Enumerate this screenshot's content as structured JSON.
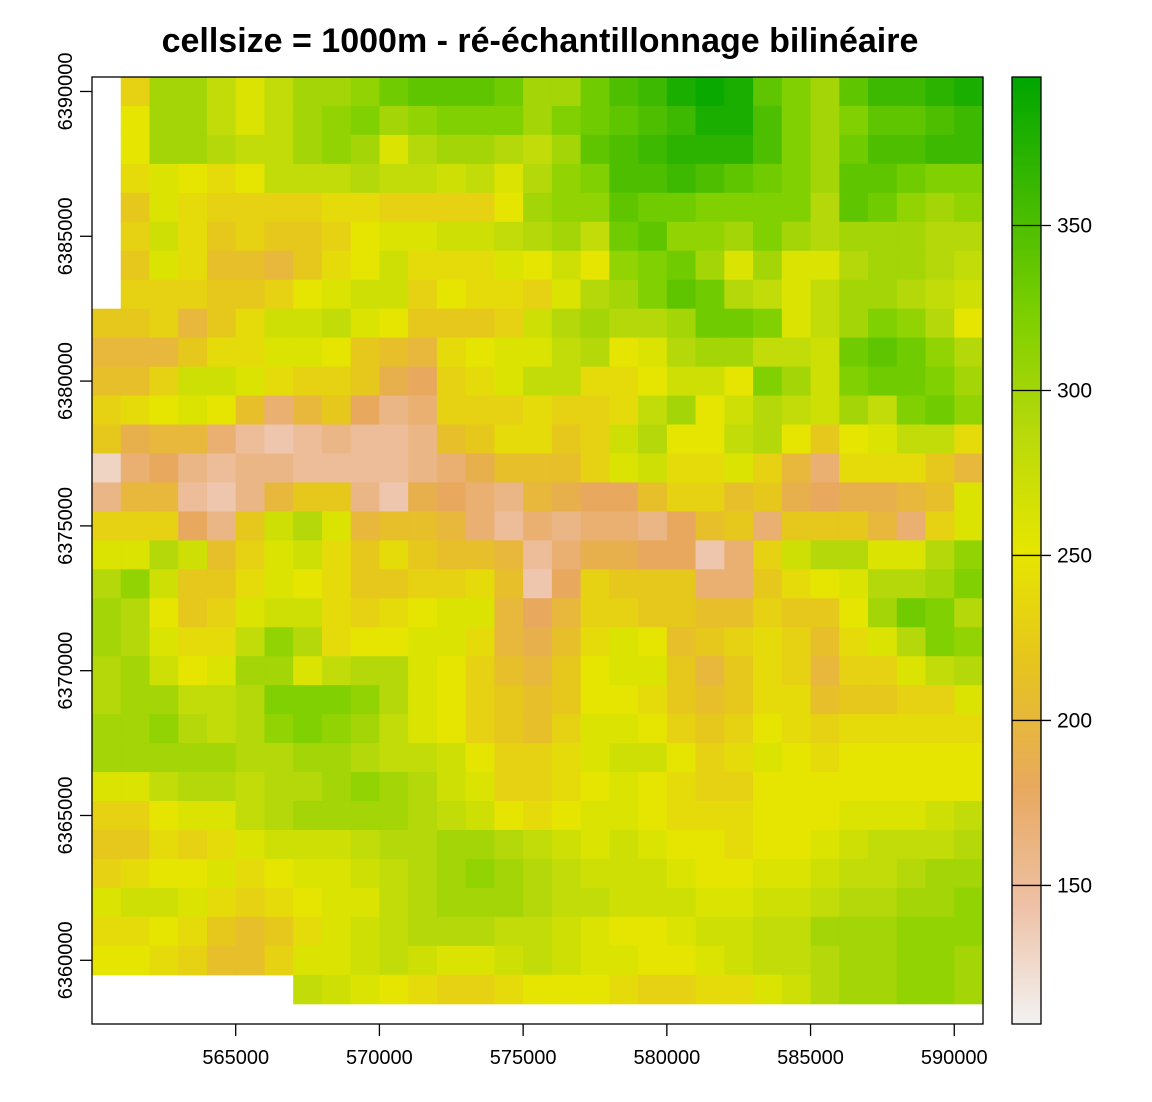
{
  "chart_data": {
    "type": "heatmap",
    "title": "cellsize = 1000m - ré-échantillonnage bilinéaire",
    "xlabel": "",
    "ylabel": "",
    "xlim": [
      560000,
      591000
    ],
    "ylim": [
      6357800,
      6390500
    ],
    "x_ticks": [
      565000,
      570000,
      575000,
      580000,
      585000,
      590000
    ],
    "y_ticks": [
      6360000,
      6365000,
      6370000,
      6375000,
      6380000,
      6385000,
      6390000
    ],
    "x_tick_labels": [
      "565000",
      "570000",
      "575000",
      "580000",
      "585000",
      "590000"
    ],
    "y_tick_labels": [
      "6360000",
      "6365000",
      "6370000",
      "6375000",
      "6380000",
      "6385000",
      "6390000"
    ],
    "cell_size_m": 1000,
    "origin_x": 560000,
    "origin_y": 6390500,
    "ncols": 31,
    "nrows": 32,
    "grid": false,
    "legend": {
      "position": "right",
      "min": 108,
      "max": 395,
      "ticks": [
        150,
        200,
        250,
        300,
        350
      ],
      "tick_labels": [
        "150",
        "200",
        "250",
        "300",
        "350"
      ],
      "colors": [
        "#f2f2f2",
        "#eec1a6",
        "#e8a95f",
        "#e6c320",
        "#e6e600",
        "#b8d90b",
        "#7ccf00",
        "#3eb900",
        "#00a600"
      ]
    },
    "rows": [
      [
        null,
        230,
        300,
        300,
        280,
        260,
        280,
        300,
        300,
        310,
        330,
        340,
        340,
        340,
        330,
        300,
        300,
        330,
        350,
        360,
        380,
        390,
        380,
        340,
        320,
        300,
        340,
        360,
        360,
        370,
        380
      ],
      [
        null,
        250,
        300,
        300,
        280,
        260,
        280,
        300,
        310,
        320,
        300,
        310,
        320,
        320,
        320,
        300,
        320,
        330,
        340,
        350,
        360,
        380,
        380,
        350,
        320,
        300,
        320,
        340,
        340,
        350,
        360
      ],
      [
        null,
        250,
        300,
        300,
        290,
        280,
        280,
        300,
        310,
        300,
        260,
        290,
        300,
        300,
        290,
        280,
        300,
        340,
        350,
        360,
        370,
        370,
        370,
        350,
        320,
        300,
        330,
        350,
        350,
        360,
        360
      ],
      [
        null,
        240,
        260,
        250,
        240,
        250,
        280,
        280,
        280,
        290,
        280,
        280,
        270,
        280,
        260,
        290,
        310,
        320,
        350,
        350,
        360,
        350,
        340,
        330,
        320,
        300,
        340,
        340,
        330,
        320,
        320
      ],
      [
        null,
        220,
        260,
        240,
        230,
        230,
        230,
        230,
        240,
        240,
        230,
        230,
        230,
        230,
        250,
        300,
        310,
        310,
        340,
        330,
        330,
        320,
        320,
        320,
        320,
        290,
        340,
        330,
        310,
        300,
        310
      ],
      [
        null,
        230,
        270,
        240,
        220,
        230,
        220,
        220,
        230,
        250,
        260,
        260,
        270,
        270,
        280,
        290,
        300,
        280,
        330,
        340,
        310,
        310,
        300,
        320,
        300,
        290,
        300,
        300,
        300,
        290,
        290
      ],
      [
        null,
        220,
        260,
        240,
        210,
        210,
        200,
        220,
        240,
        250,
        270,
        240,
        240,
        240,
        260,
        250,
        270,
        250,
        310,
        320,
        330,
        300,
        260,
        300,
        260,
        260,
        290,
        300,
        300,
        290,
        280
      ],
      [
        null,
        230,
        230,
        230,
        220,
        220,
        230,
        250,
        260,
        270,
        270,
        230,
        250,
        240,
        240,
        230,
        260,
        290,
        300,
        320,
        340,
        330,
        290,
        280,
        260,
        280,
        300,
        300,
        290,
        280,
        270
      ],
      [
        220,
        220,
        230,
        200,
        220,
        240,
        270,
        270,
        280,
        260,
        250,
        220,
        220,
        220,
        230,
        270,
        290,
        300,
        290,
        290,
        300,
        330,
        330,
        320,
        260,
        280,
        300,
        320,
        310,
        290,
        250
      ],
      [
        200,
        200,
        200,
        220,
        240,
        240,
        260,
        260,
        250,
        220,
        210,
        200,
        240,
        250,
        260,
        260,
        280,
        290,
        250,
        260,
        290,
        300,
        300,
        280,
        280,
        270,
        330,
        340,
        330,
        310,
        290
      ],
      [
        210,
        210,
        230,
        270,
        270,
        260,
        240,
        230,
        230,
        220,
        190,
        180,
        230,
        240,
        260,
        280,
        280,
        240,
        240,
        250,
        270,
        270,
        250,
        320,
        300,
        270,
        320,
        330,
        330,
        320,
        300
      ],
      [
        230,
        240,
        250,
        260,
        250,
        210,
        170,
        200,
        220,
        180,
        160,
        170,
        230,
        230,
        230,
        240,
        230,
        230,
        240,
        280,
        300,
        250,
        270,
        290,
        280,
        270,
        300,
        280,
        320,
        330,
        310
      ],
      [
        220,
        190,
        200,
        200,
        170,
        150,
        140,
        150,
        160,
        150,
        150,
        160,
        210,
        220,
        240,
        240,
        220,
        230,
        270,
        290,
        250,
        250,
        280,
        290,
        250,
        220,
        250,
        260,
        280,
        280,
        240
      ],
      [
        130,
        170,
        180,
        160,
        150,
        160,
        160,
        150,
        150,
        150,
        150,
        160,
        170,
        190,
        210,
        210,
        210,
        230,
        260,
        270,
        240,
        240,
        260,
        230,
        200,
        170,
        240,
        240,
        240,
        220,
        200
      ],
      [
        160,
        200,
        200,
        150,
        140,
        160,
        200,
        220,
        220,
        160,
        140,
        190,
        180,
        170,
        160,
        200,
        190,
        180,
        180,
        210,
        230,
        230,
        210,
        220,
        190,
        180,
        190,
        190,
        200,
        210,
        260
      ],
      [
        230,
        230,
        230,
        180,
        160,
        220,
        270,
        290,
        260,
        200,
        210,
        210,
        200,
        170,
        150,
        170,
        160,
        170,
        170,
        160,
        180,
        210,
        220,
        170,
        220,
        220,
        220,
        200,
        170,
        230,
        260
      ],
      [
        260,
        260,
        290,
        270,
        210,
        230,
        260,
        270,
        240,
        220,
        240,
        220,
        210,
        210,
        200,
        150,
        170,
        190,
        190,
        180,
        180,
        140,
        170,
        230,
        270,
        290,
        290,
        260,
        260,
        290,
        310
      ],
      [
        290,
        310,
        270,
        220,
        220,
        240,
        260,
        250,
        240,
        220,
        220,
        230,
        230,
        240,
        210,
        140,
        180,
        230,
        220,
        220,
        220,
        170,
        170,
        220,
        240,
        250,
        260,
        290,
        290,
        300,
        320
      ],
      [
        300,
        290,
        250,
        220,
        230,
        260,
        270,
        270,
        240,
        230,
        240,
        250,
        260,
        260,
        200,
        180,
        200,
        230,
        230,
        220,
        220,
        210,
        210,
        230,
        220,
        220,
        250,
        300,
        330,
        320,
        290
      ],
      [
        300,
        290,
        260,
        240,
        240,
        280,
        310,
        290,
        240,
        250,
        250,
        260,
        260,
        240,
        200,
        190,
        210,
        240,
        260,
        250,
        210,
        220,
        230,
        240,
        230,
        210,
        240,
        260,
        290,
        320,
        310
      ],
      [
        290,
        300,
        270,
        250,
        260,
        300,
        300,
        260,
        280,
        290,
        290,
        260,
        250,
        230,
        210,
        200,
        220,
        250,
        260,
        260,
        220,
        200,
        220,
        240,
        230,
        200,
        230,
        230,
        260,
        280,
        290
      ],
      [
        290,
        300,
        300,
        280,
        280,
        290,
        320,
        320,
        320,
        310,
        290,
        260,
        250,
        230,
        220,
        210,
        220,
        250,
        250,
        240,
        220,
        210,
        220,
        240,
        240,
        210,
        220,
        220,
        230,
        230,
        260
      ],
      [
        300,
        300,
        310,
        290,
        280,
        290,
        310,
        320,
        310,
        300,
        280,
        260,
        250,
        230,
        220,
        210,
        230,
        260,
        260,
        250,
        230,
        220,
        230,
        250,
        240,
        230,
        240,
        240,
        240,
        240,
        240
      ],
      [
        300,
        300,
        300,
        300,
        300,
        290,
        290,
        300,
        300,
        290,
        280,
        280,
        270,
        250,
        230,
        230,
        240,
        260,
        270,
        270,
        250,
        230,
        240,
        260,
        250,
        240,
        250,
        250,
        250,
        250,
        250
      ],
      [
        260,
        260,
        280,
        290,
        290,
        280,
        290,
        290,
        300,
        310,
        300,
        290,
        270,
        260,
        230,
        230,
        240,
        250,
        260,
        250,
        240,
        230,
        230,
        250,
        250,
        250,
        250,
        250,
        250,
        250,
        250
      ],
      [
        230,
        230,
        250,
        260,
        260,
        280,
        290,
        300,
        300,
        300,
        300,
        290,
        280,
        270,
        250,
        240,
        250,
        260,
        260,
        250,
        240,
        240,
        240,
        250,
        250,
        250,
        260,
        260,
        260,
        270,
        280
      ],
      [
        220,
        220,
        240,
        230,
        240,
        260,
        270,
        270,
        270,
        280,
        290,
        290,
        300,
        300,
        290,
        280,
        270,
        260,
        270,
        260,
        250,
        250,
        240,
        250,
        250,
        260,
        270,
        280,
        280,
        280,
        290
      ],
      [
        230,
        240,
        250,
        250,
        260,
        240,
        250,
        260,
        260,
        270,
        280,
        290,
        300,
        310,
        300,
        290,
        280,
        270,
        270,
        270,
        260,
        250,
        250,
        260,
        260,
        270,
        280,
        280,
        290,
        300,
        300
      ],
      [
        260,
        270,
        270,
        260,
        240,
        230,
        240,
        250,
        260,
        260,
        280,
        290,
        300,
        300,
        300,
        290,
        280,
        280,
        270,
        270,
        270,
        260,
        260,
        270,
        270,
        280,
        290,
        290,
        300,
        300,
        310
      ],
      [
        240,
        240,
        250,
        240,
        220,
        210,
        220,
        240,
        260,
        270,
        280,
        290,
        290,
        290,
        280,
        280,
        270,
        260,
        250,
        250,
        260,
        270,
        270,
        280,
        280,
        300,
        300,
        300,
        310,
        310,
        310
      ],
      [
        250,
        250,
        240,
        230,
        210,
        210,
        230,
        260,
        260,
        270,
        280,
        270,
        260,
        260,
        270,
        280,
        270,
        260,
        260,
        250,
        250,
        260,
        270,
        280,
        280,
        290,
        300,
        300,
        310,
        310,
        300
      ],
      [
        null,
        null,
        null,
        null,
        null,
        null,
        null,
        280,
        270,
        260,
        250,
        240,
        230,
        230,
        240,
        250,
        250,
        250,
        240,
        230,
        230,
        240,
        240,
        260,
        270,
        290,
        300,
        300,
        310,
        310,
        300
      ]
    ]
  }
}
